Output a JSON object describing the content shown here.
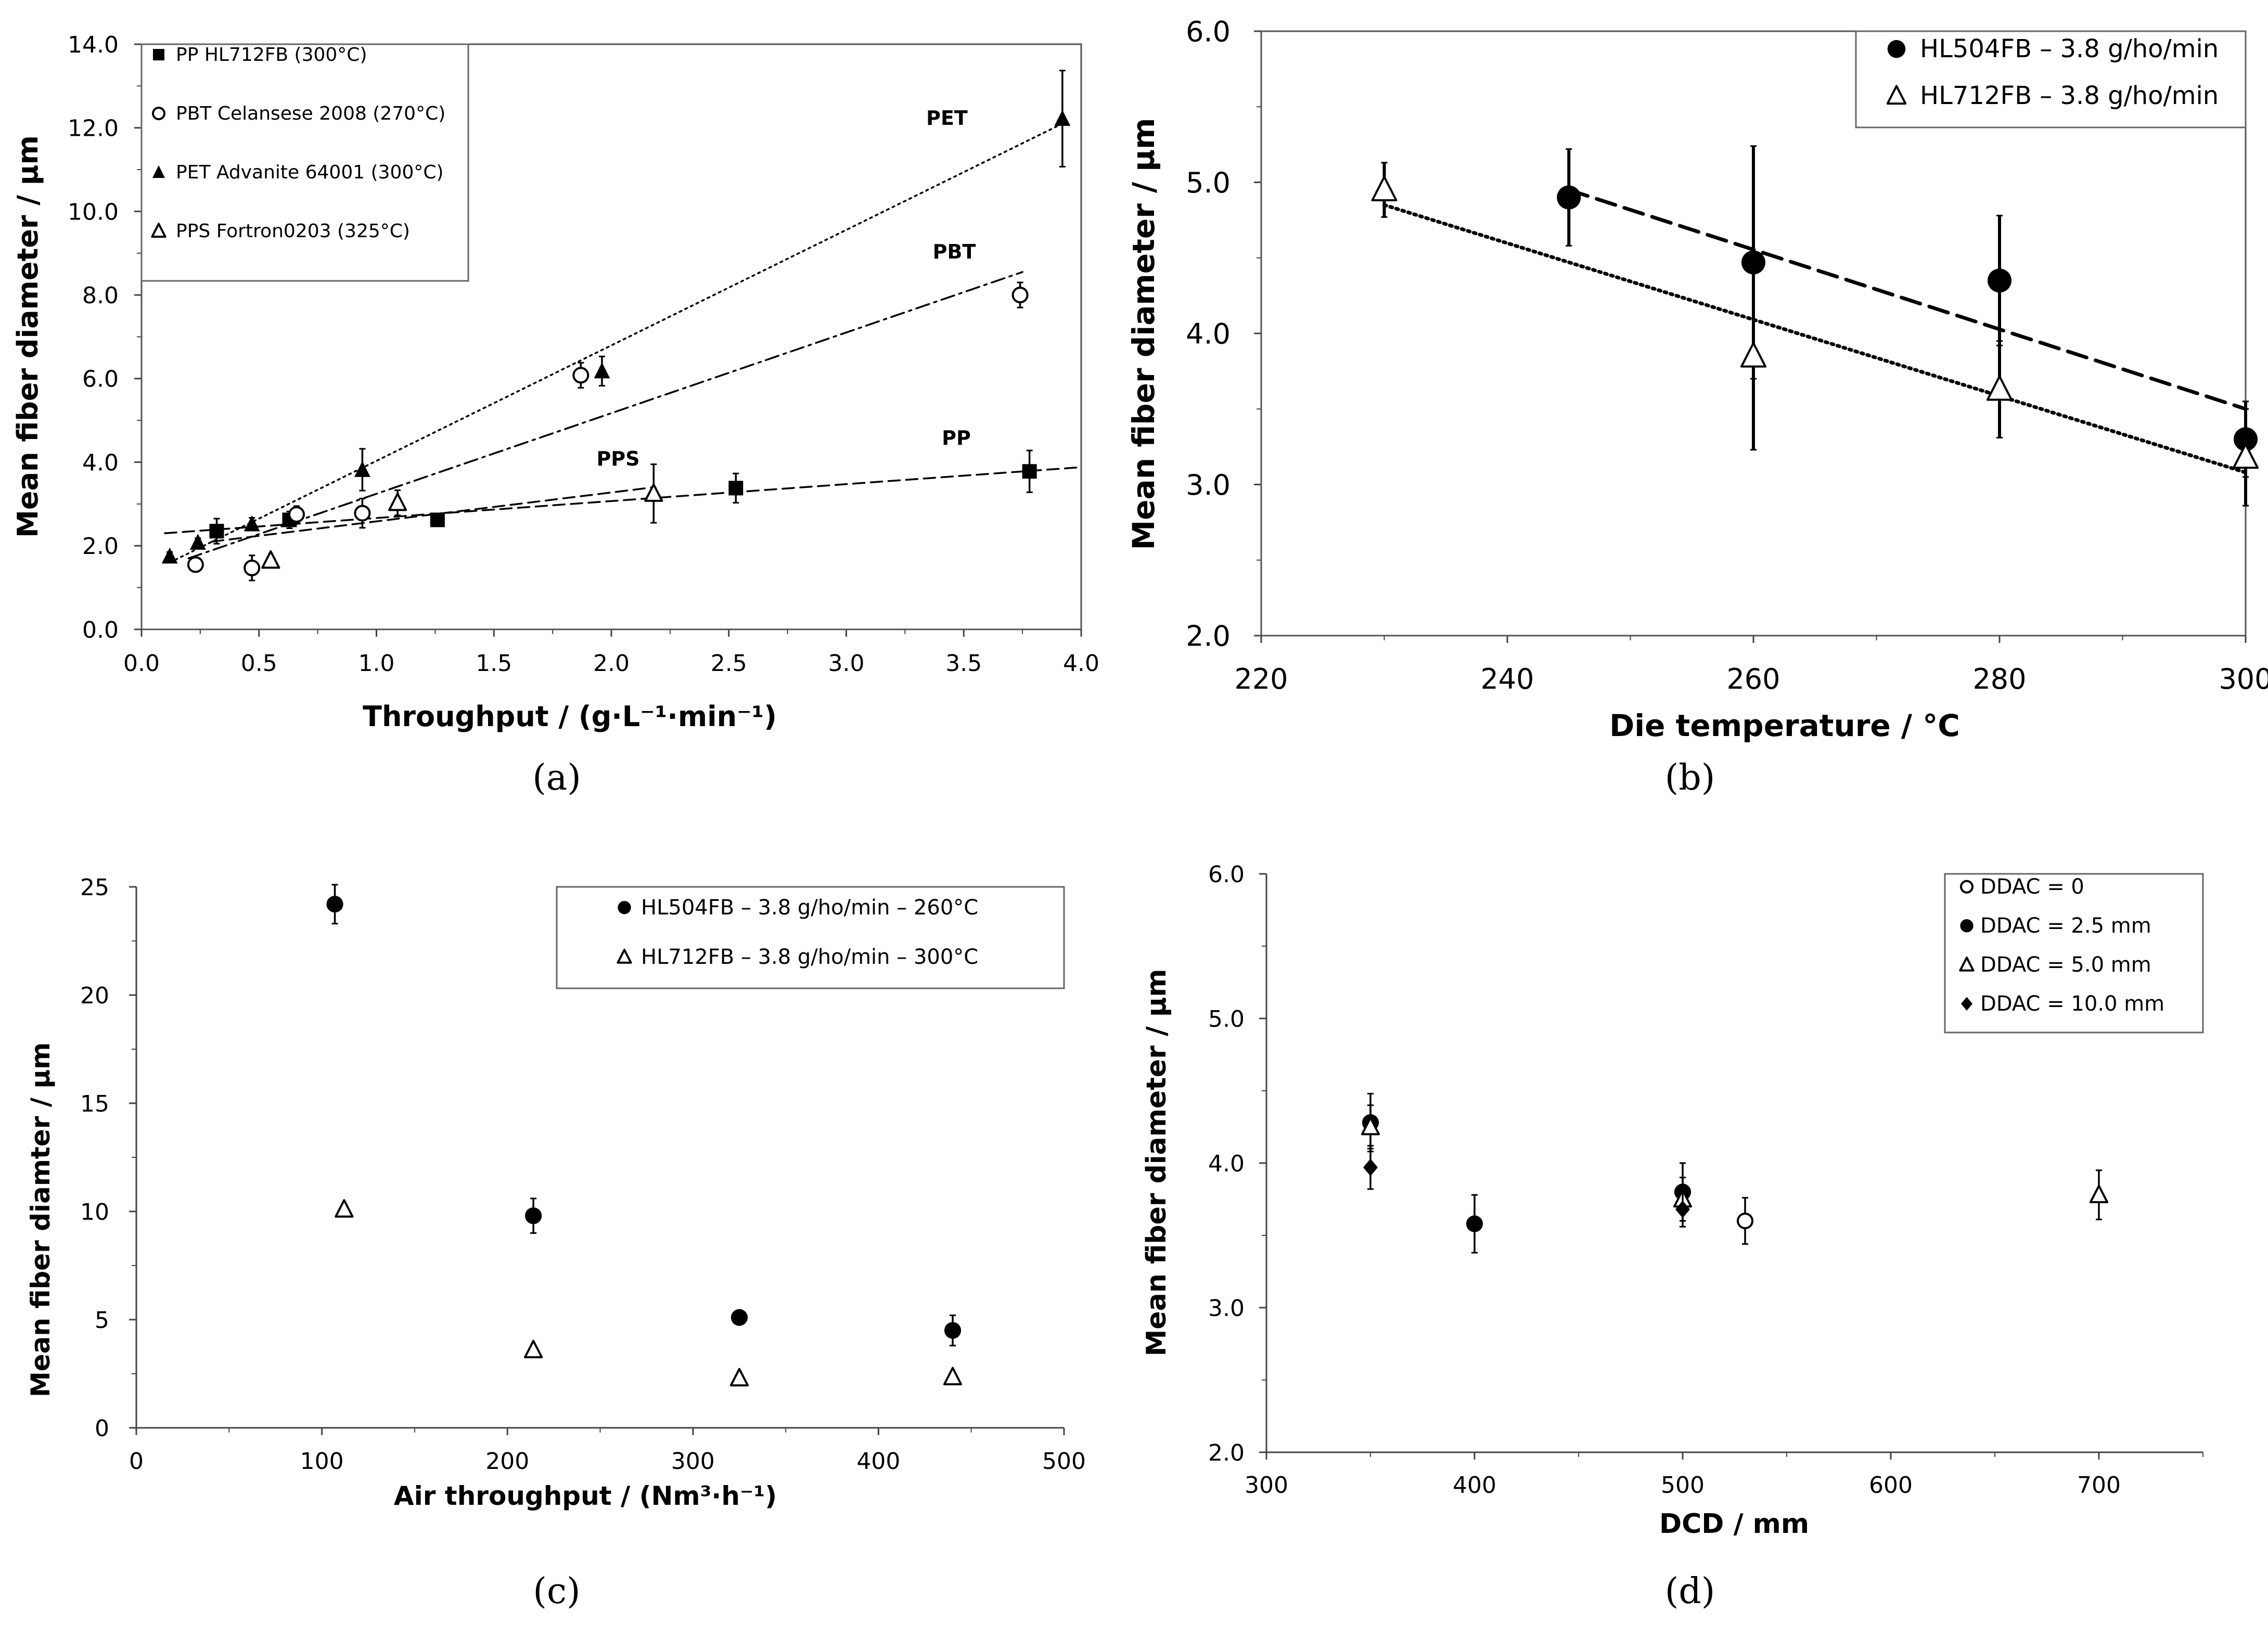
{
  "chart_data": [
    {
      "panel": "(a)",
      "type": "scatter",
      "xlabel": "Throughput / (g·L⁻¹·min⁻¹)",
      "ylabel": "Mean fiber diameter / µm",
      "xlim": [
        0.0,
        4.0
      ],
      "ylim": [
        0.0,
        14.0
      ],
      "xticks": [
        "0.0",
        "0.5",
        "1.0",
        "1.5",
        "2.0",
        "2.5",
        "3.0",
        "3.5",
        "4.0"
      ],
      "yticks": [
        "0.0",
        "2.0",
        "4.0",
        "6.0",
        "8.0",
        "10.0",
        "12.0",
        "14.0"
      ],
      "legend_position": "top-left",
      "series": [
        {
          "name": "PP HL712FB (300°C)",
          "marker": "square-filled",
          "label": "PP",
          "points": [
            [
              0.32,
              2.35
            ],
            [
              0.63,
              2.62
            ],
            [
              1.26,
              2.62
            ],
            [
              2.53,
              3.38
            ],
            [
              3.78,
              3.78
            ]
          ],
          "errors": [
            0.3,
            0.2,
            0.1,
            0.35,
            0.5
          ],
          "trend": [
            [
              0.1,
              2.3
            ],
            [
              4.0,
              3.88
            ]
          ],
          "trend_style": "dashed"
        },
        {
          "name": "PBT Celansese 2008 (270°C)",
          "marker": "circle-open",
          "label": "PBT",
          "points": [
            [
              0.23,
              1.55
            ],
            [
              0.47,
              1.47
            ],
            [
              0.66,
              2.75
            ],
            [
              0.94,
              2.78
            ],
            [
              1.87,
              6.08
            ],
            [
              3.74,
              8.0
            ]
          ],
          "errors": [
            0.15,
            0.3,
            0.2,
            0.35,
            0.3,
            0.3
          ],
          "trend": [
            [
              0.2,
              1.7
            ],
            [
              3.75,
              8.55
            ]
          ],
          "trend_style": "dash-dot"
        },
        {
          "name": "PET Advanite 64001 (300°C)",
          "marker": "triangle-filled",
          "label": "PET",
          "points": [
            [
              0.12,
              1.75
            ],
            [
              0.24,
              2.08
            ],
            [
              0.47,
              2.52
            ],
            [
              0.94,
              3.82
            ],
            [
              1.96,
              6.18
            ],
            [
              3.92,
              12.22
            ]
          ],
          "errors": [
            0.1,
            0.1,
            0.15,
            0.5,
            0.35,
            1.15
          ],
          "trend": [
            [
              0.12,
              1.6
            ],
            [
              3.92,
              12.1
            ]
          ],
          "trend_style": "dotted"
        },
        {
          "name": "PPS Fortron0203 (325°C)",
          "marker": "triangle-open",
          "label": "PPS",
          "points": [
            [
              0.55,
              1.65
            ],
            [
              1.09,
              3.03
            ],
            [
              2.18,
              3.25
            ]
          ],
          "errors": [
            0.1,
            0.3,
            0.7
          ],
          "trend": [
            [
              0.3,
              2.1
            ],
            [
              2.18,
              3.4
            ]
          ],
          "trend_style": "dashed"
        }
      ]
    },
    {
      "panel": "(b)",
      "type": "scatter",
      "xlabel": "Die temperature / °C",
      "ylabel": "Mean fiber diameter / µm",
      "xlim": [
        220,
        300
      ],
      "ylim": [
        2.0,
        6.0
      ],
      "xticks": [
        "220",
        "240",
        "260",
        "280",
        "300"
      ],
      "yticks": [
        "2.0",
        "3.0",
        "4.0",
        "5.0",
        "6.0"
      ],
      "legend_position": "top-right",
      "series": [
        {
          "name": "HL504FB – 3.8 g/ho/min",
          "marker": "circle-filled",
          "points": [
            [
              245,
              4.9
            ],
            [
              260,
              4.47
            ],
            [
              280,
              4.35
            ],
            [
              300,
              3.3
            ]
          ],
          "errors": [
            0.32,
            0.77,
            0.43,
            0.25
          ],
          "trend": [
            [
              245,
              4.95
            ],
            [
              300,
              3.5
            ]
          ],
          "trend_style": "long-dash"
        },
        {
          "name": "HL712FB – 3.8 g/ho/min",
          "marker": "triangle-open",
          "points": [
            [
              230,
              4.95
            ],
            [
              260,
              3.85
            ],
            [
              280,
              3.63
            ],
            [
              300,
              3.18
            ]
          ],
          "errors": [
            0.18,
            0.62,
            0.32,
            0.32
          ],
          "trend": [
            [
              230,
              4.85
            ],
            [
              300,
              3.08
            ]
          ],
          "trend_style": "dotted"
        }
      ]
    },
    {
      "panel": "(c)",
      "type": "scatter",
      "xlabel": "Air throughput /  (Nm³·h⁻¹)",
      "ylabel": "Mean fiber diamter / µm",
      "xlim": [
        0,
        500
      ],
      "ylim": [
        0,
        25
      ],
      "xticks": [
        "0",
        "100",
        "200",
        "300",
        "400",
        "500"
      ],
      "yticks": [
        "0",
        "5",
        "10",
        "15",
        "20",
        "25"
      ],
      "legend_position": "top-right",
      "series": [
        {
          "name": "HL504FB – 3.8 g/ho/min – 260°C",
          "marker": "circle-filled",
          "points": [
            [
              107,
              24.2
            ],
            [
              214,
              9.8
            ],
            [
              325,
              5.1
            ],
            [
              440,
              4.5
            ]
          ],
          "errors": [
            0.9,
            0.8,
            0.1,
            0.7
          ]
        },
        {
          "name": "HL712FB – 3.8 g/ho/min – 300°C",
          "marker": "triangle-open",
          "points": [
            [
              112,
              10.1
            ],
            [
              214,
              3.6
            ],
            [
              325,
              2.3
            ],
            [
              440,
              2.35
            ]
          ],
          "errors": [
            0.2,
            0.2,
            0.15,
            0.15
          ]
        }
      ]
    },
    {
      "panel": "(d)",
      "type": "scatter",
      "xlabel": "DCD / mm",
      "ylabel": "Mean fiber diameter / µm",
      "xlim": [
        300,
        750
      ],
      "ylim": [
        2.0,
        6.0
      ],
      "xticks": [
        "300",
        "400",
        "500",
        "600",
        "700"
      ],
      "yticks": [
        "2.0",
        "3.0",
        "4.0",
        "5.0",
        "6.0"
      ],
      "legend_position": "top-right",
      "series": [
        {
          "name": "DDAC = 0",
          "marker": "circle-open",
          "points": [
            [
              530,
              3.6
            ]
          ],
          "errors": [
            0.16
          ]
        },
        {
          "name": "DDAC = 2.5 mm",
          "marker": "circle-filled",
          "points": [
            [
              350,
              4.28
            ],
            [
              400,
              3.58
            ],
            [
              500,
              3.8
            ]
          ],
          "errors": [
            0.2,
            0.2,
            0.2
          ]
        },
        {
          "name": "DDAC = 5.0 mm",
          "marker": "triangle-open",
          "points": [
            [
              350,
              4.25
            ],
            [
              500,
              3.75
            ],
            [
              700,
              3.78
            ]
          ],
          "errors": [
            0.15,
            0.15,
            0.17
          ]
        },
        {
          "name": "DDAC = 10.0 mm",
          "marker": "diamond-filled",
          "points": [
            [
              350,
              3.97
            ],
            [
              500,
              3.68
            ]
          ],
          "errors": [
            0.15,
            0.12
          ]
        }
      ]
    }
  ]
}
